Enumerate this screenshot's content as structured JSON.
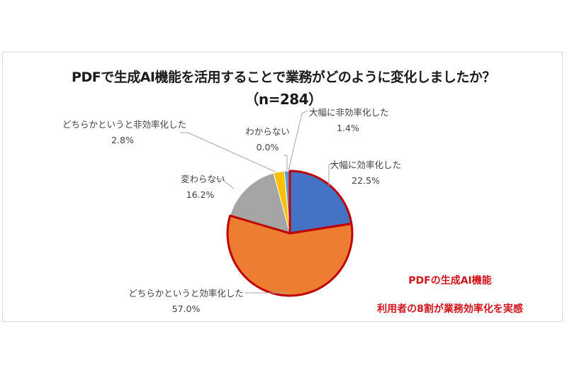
{
  "chart_data": {
    "type": "pie",
    "title": "PDFで生成AI機能を活用することで業務がどのように変化しましたか？",
    "subtitle": "（n=284）",
    "categories": [
      "大幅に効率化した",
      "どちらかというと効率化した",
      "変わらない",
      "どちらかというと非効率化した",
      "わからない",
      "大幅に非効率化した"
    ],
    "values": [
      22.5,
      57.0,
      16.2,
      2.8,
      0.0,
      1.4
    ],
    "unit": "%",
    "colors": [
      "#4472c4",
      "#ed7d31",
      "#a5a5a5",
      "#ffc000",
      "#5b9bd5",
      "#5b9bd5"
    ],
    "highlighted": [
      "大幅に効率化した",
      "どちらかというと効率化した"
    ],
    "highlight_color": "#c00000",
    "labels": [
      {
        "name": "大幅に効率化した",
        "value": "22.5%"
      },
      {
        "name": "どちらかというと効率化した",
        "value": "57.0%"
      },
      {
        "name": "変わらない",
        "value": "16.2%"
      },
      {
        "name": "どちらかというと非効率化した",
        "value": "2.8%"
      },
      {
        "name": "わからない",
        "value": "0.0%"
      },
      {
        "name": "大幅に非効率化した",
        "value": "1.4%"
      }
    ],
    "annotation": [
      "PDFの生成AI機能",
      "利用者の8割が業務効率化を実感"
    ]
  }
}
